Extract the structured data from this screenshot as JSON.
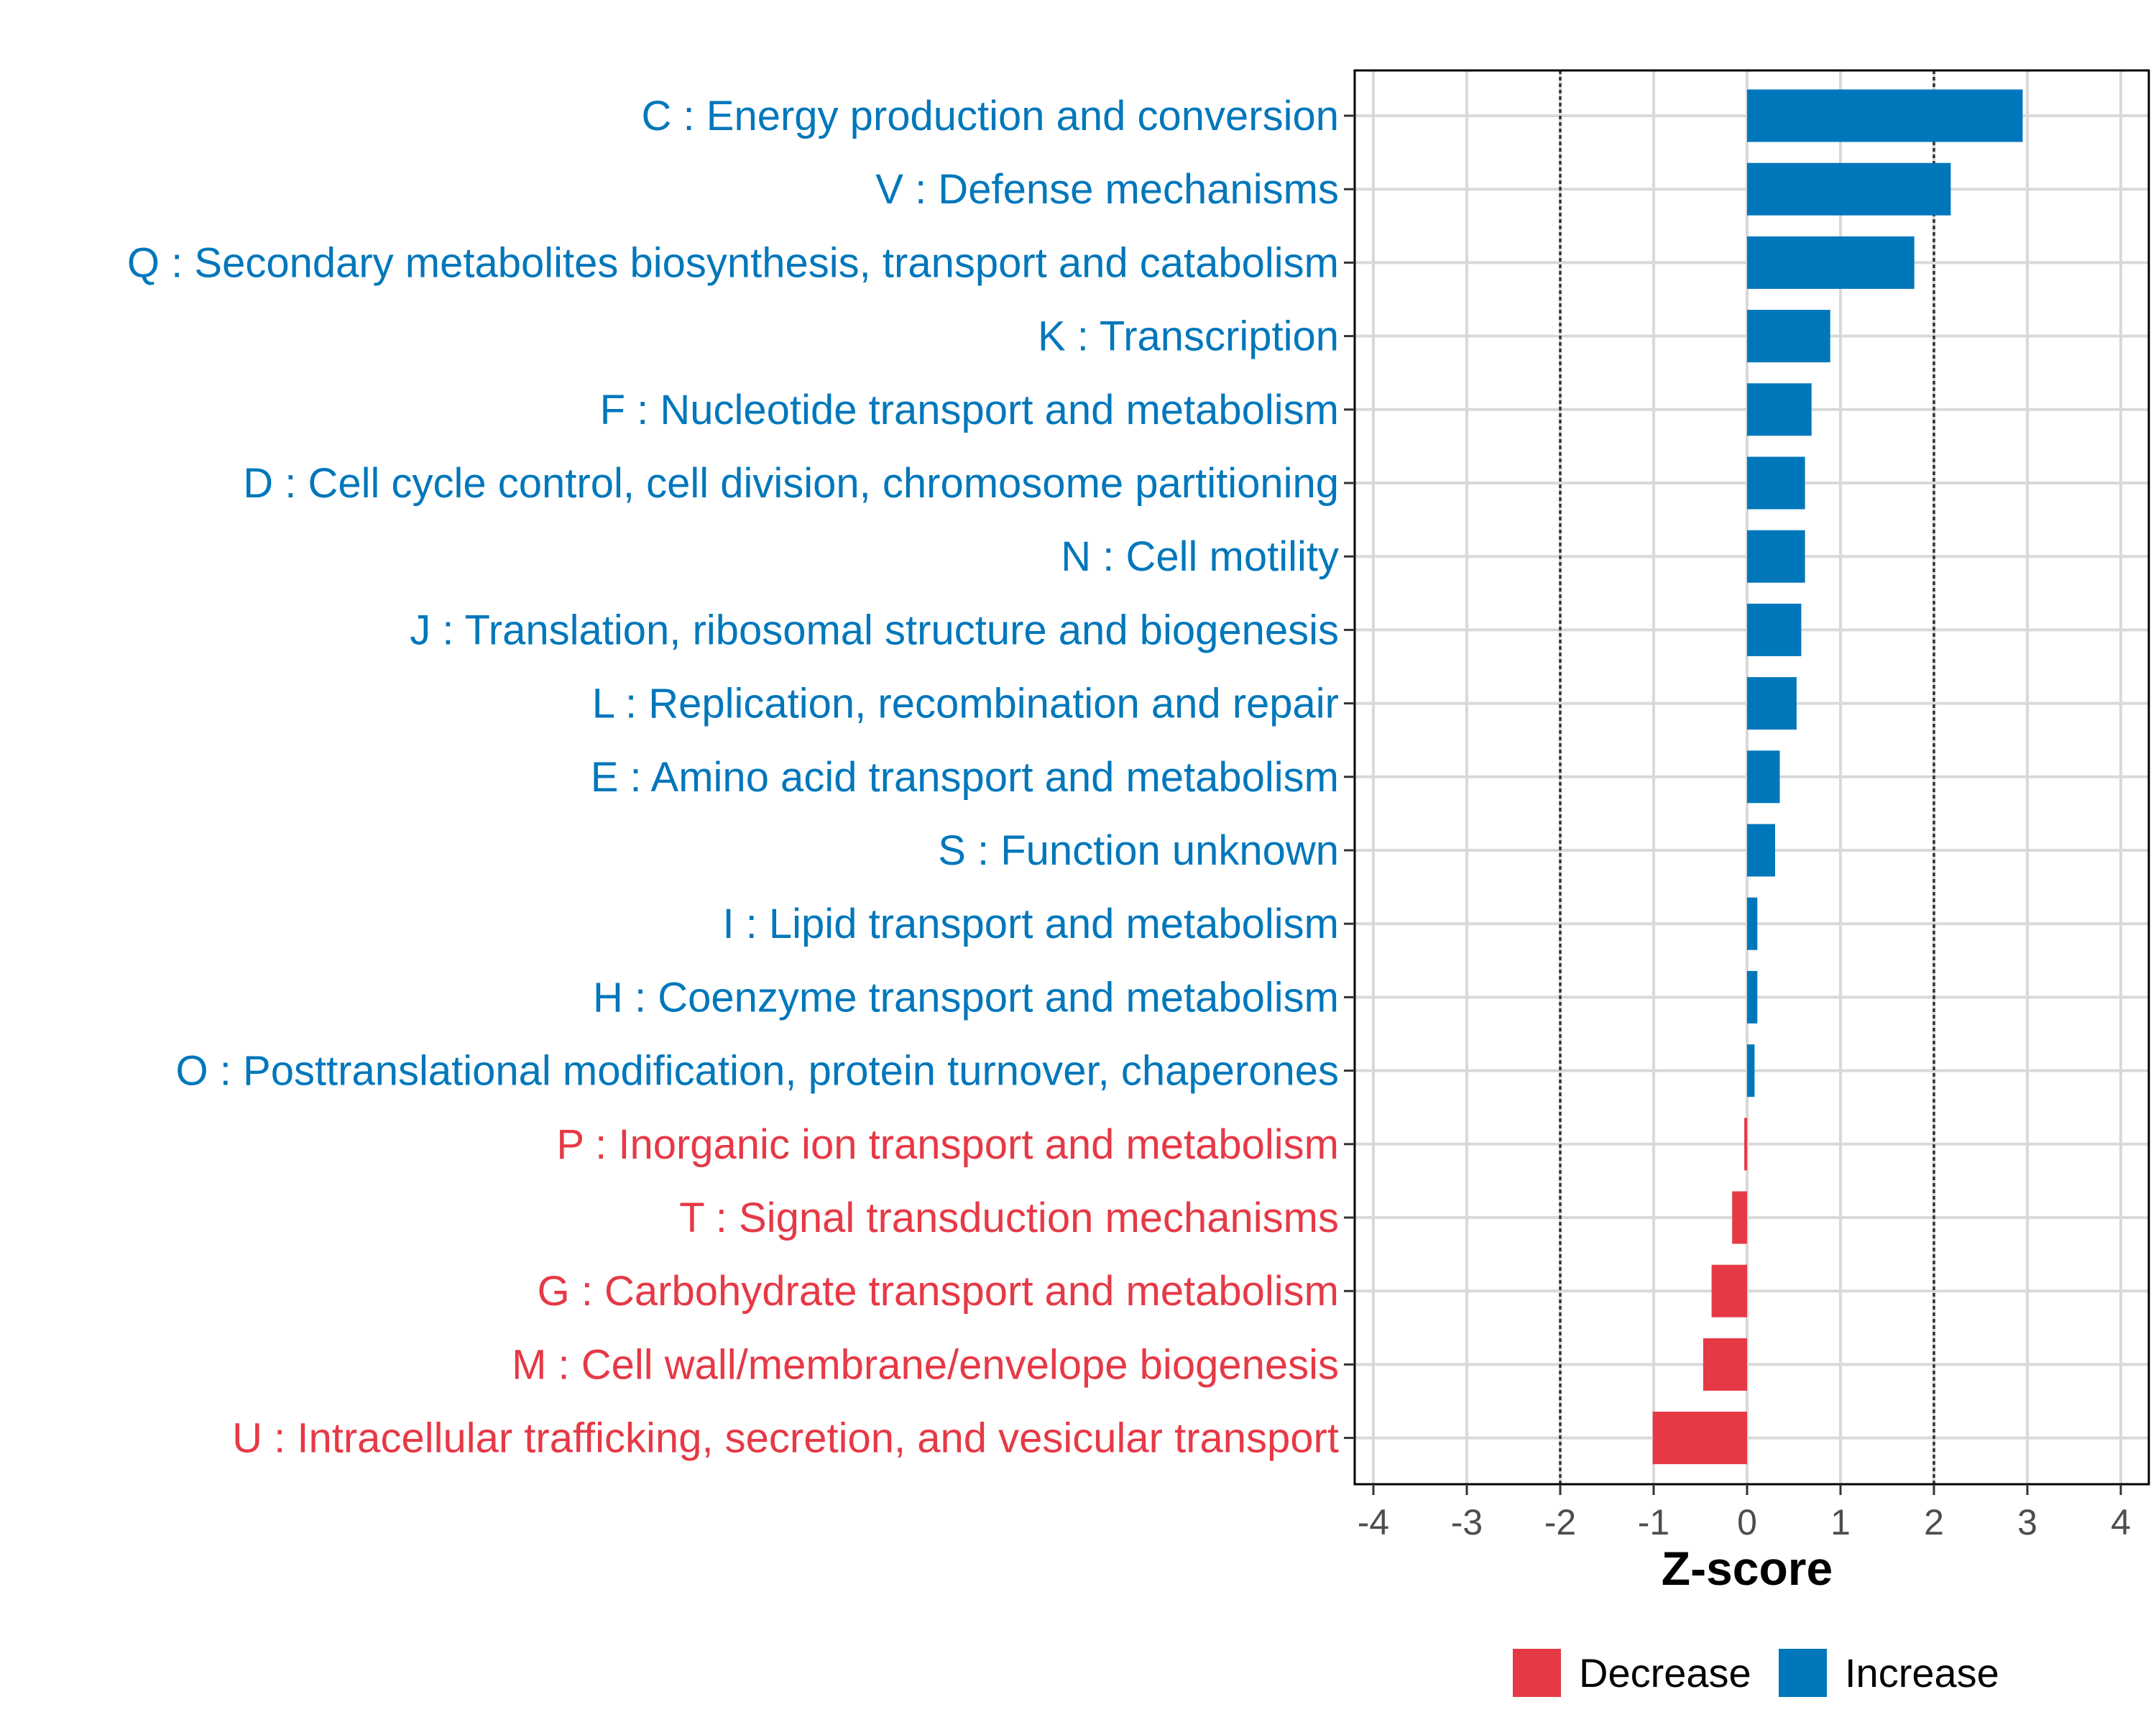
{
  "colors": {
    "increase": "#0077BB",
    "decrease": "#E63946",
    "grid": "#d9d9d9",
    "axis": "#000000",
    "threshold": "#333333"
  },
  "chart_data": {
    "type": "bar",
    "orientation": "horizontal",
    "title": "",
    "xlabel": "Z-score",
    "ylabel": "",
    "xlim": [
      -4.2,
      4.3
    ],
    "xticks": [
      -4,
      -3,
      -2,
      -1,
      0,
      1,
      2,
      3,
      4
    ],
    "xtick_labels": [
      "-4",
      "-3",
      "-2",
      "-1",
      "0",
      "1",
      "2",
      "3",
      "4"
    ],
    "threshold_lines": [
      -2,
      2
    ],
    "grid": true,
    "legend_position": "bottom",
    "legend": [
      {
        "label": "Decrease",
        "color_key": "decrease"
      },
      {
        "label": "Increase",
        "color_key": "increase"
      }
    ],
    "categories": [
      "C : Energy production and conversion",
      "V : Defense mechanisms",
      "Q : Secondary metabolites biosynthesis, transport and catabolism",
      "K : Transcription",
      "F : Nucleotide transport and metabolism",
      "D : Cell cycle control, cell division, chromosome partitioning",
      "N : Cell motility",
      "J : Translation, ribosomal structure and biogenesis",
      "L : Replication, recombination and repair",
      "E : Amino acid transport and metabolism",
      "S : Function unknown",
      "I : Lipid transport and metabolism",
      "H : Coenzyme transport and metabolism",
      "O : Posttranslational modification, protein turnover, chaperones",
      "P : Inorganic ion transport and metabolism",
      "T : Signal transduction mechanisms",
      "G : Carbohydrate transport and metabolism",
      "M : Cell wall/membrane/envelope biogenesis",
      "U : Intracellular trafficking, secretion, and vesicular transport"
    ],
    "values": [
      2.95,
      2.18,
      1.79,
      0.89,
      0.69,
      0.62,
      0.62,
      0.58,
      0.53,
      0.35,
      0.3,
      0.11,
      0.11,
      0.08,
      -0.03,
      -0.16,
      -0.38,
      -0.47,
      -1.01
    ],
    "direction": [
      "Increase",
      "Increase",
      "Increase",
      "Increase",
      "Increase",
      "Increase",
      "Increase",
      "Increase",
      "Increase",
      "Increase",
      "Increase",
      "Increase",
      "Increase",
      "Increase",
      "Decrease",
      "Decrease",
      "Decrease",
      "Decrease",
      "Decrease"
    ]
  }
}
